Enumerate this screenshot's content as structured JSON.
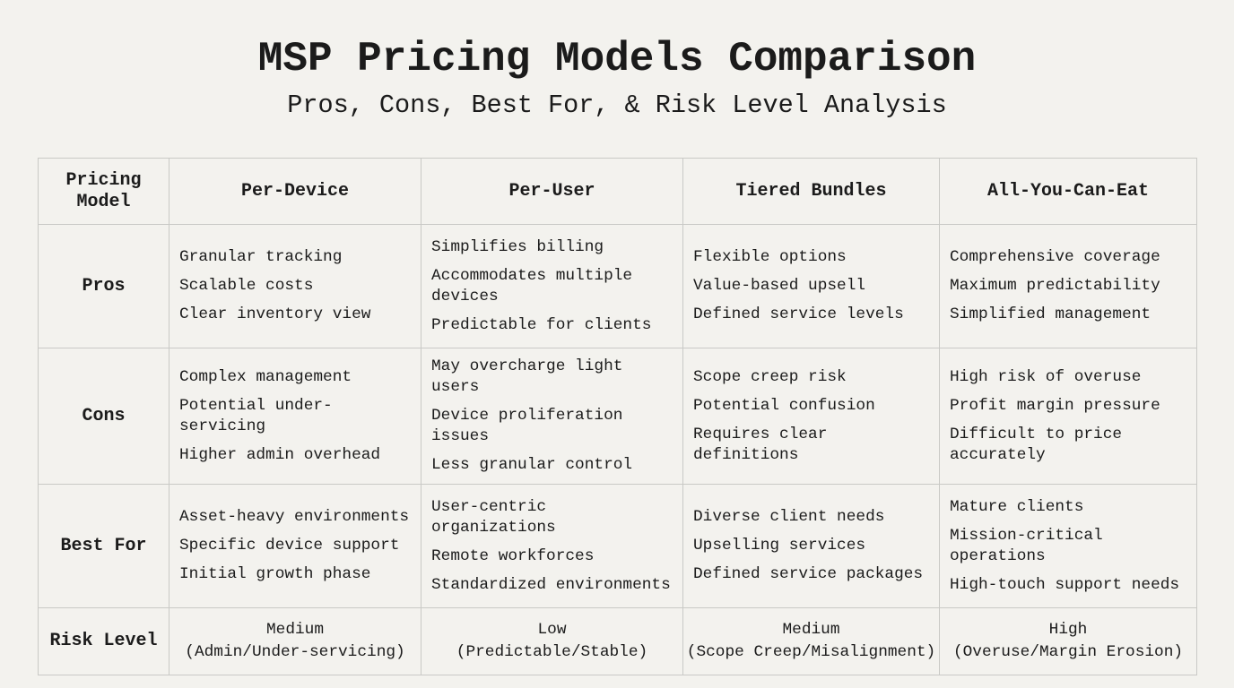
{
  "title": "MSP Pricing Models Comparison",
  "subtitle": "Pros, Cons, Best For, & Risk Level Analysis",
  "table": {
    "corner": "Pricing Model",
    "columns": [
      "Per-Device",
      "Per-User",
      "Tiered Bundles",
      "All-You-Can-Eat"
    ],
    "rows": [
      {
        "label": "Pros",
        "cells": [
          [
            "Granular tracking",
            "Scalable costs",
            "Clear inventory view"
          ],
          [
            "Simplifies billing",
            "Accommodates multiple devices",
            "Predictable for clients"
          ],
          [
            "Flexible options",
            "Value-based upsell",
            "Defined service levels"
          ],
          [
            "Comprehensive coverage",
            "Maximum predictability",
            "Simplified management"
          ]
        ]
      },
      {
        "label": "Cons",
        "cells": [
          [
            "Complex management",
            "Potential under-servicing",
            "Higher admin overhead"
          ],
          [
            "May overcharge light users",
            "Device proliferation issues",
            "Less granular control"
          ],
          [
            "Scope creep risk",
            "Potential confusion",
            "Requires clear definitions"
          ],
          [
            "High risk of overuse",
            "Profit margin pressure",
            "Difficult to price accurately"
          ]
        ]
      },
      {
        "label": "Best For",
        "cells": [
          [
            "Asset-heavy environments",
            "Specific device support",
            "Initial growth phase"
          ],
          [
            "User-centric organizations",
            "Remote workforces",
            "Standardized environments"
          ],
          [
            "Diverse client needs",
            "Upselling services",
            "Defined service packages"
          ],
          [
            "Mature clients",
            "Mission-critical operations",
            "High-touch support needs"
          ]
        ]
      }
    ],
    "risk": {
      "label": "Risk Level",
      "cells": [
        {
          "level": "Medium",
          "reason": "(Admin/Under-servicing)"
        },
        {
          "level": "Low",
          "reason": "(Predictable/Stable)"
        },
        {
          "level": "Medium",
          "reason": "(Scope Creep/Misalignment)"
        },
        {
          "level": "High",
          "reason": "(Overuse/Margin Erosion)"
        }
      ]
    }
  }
}
